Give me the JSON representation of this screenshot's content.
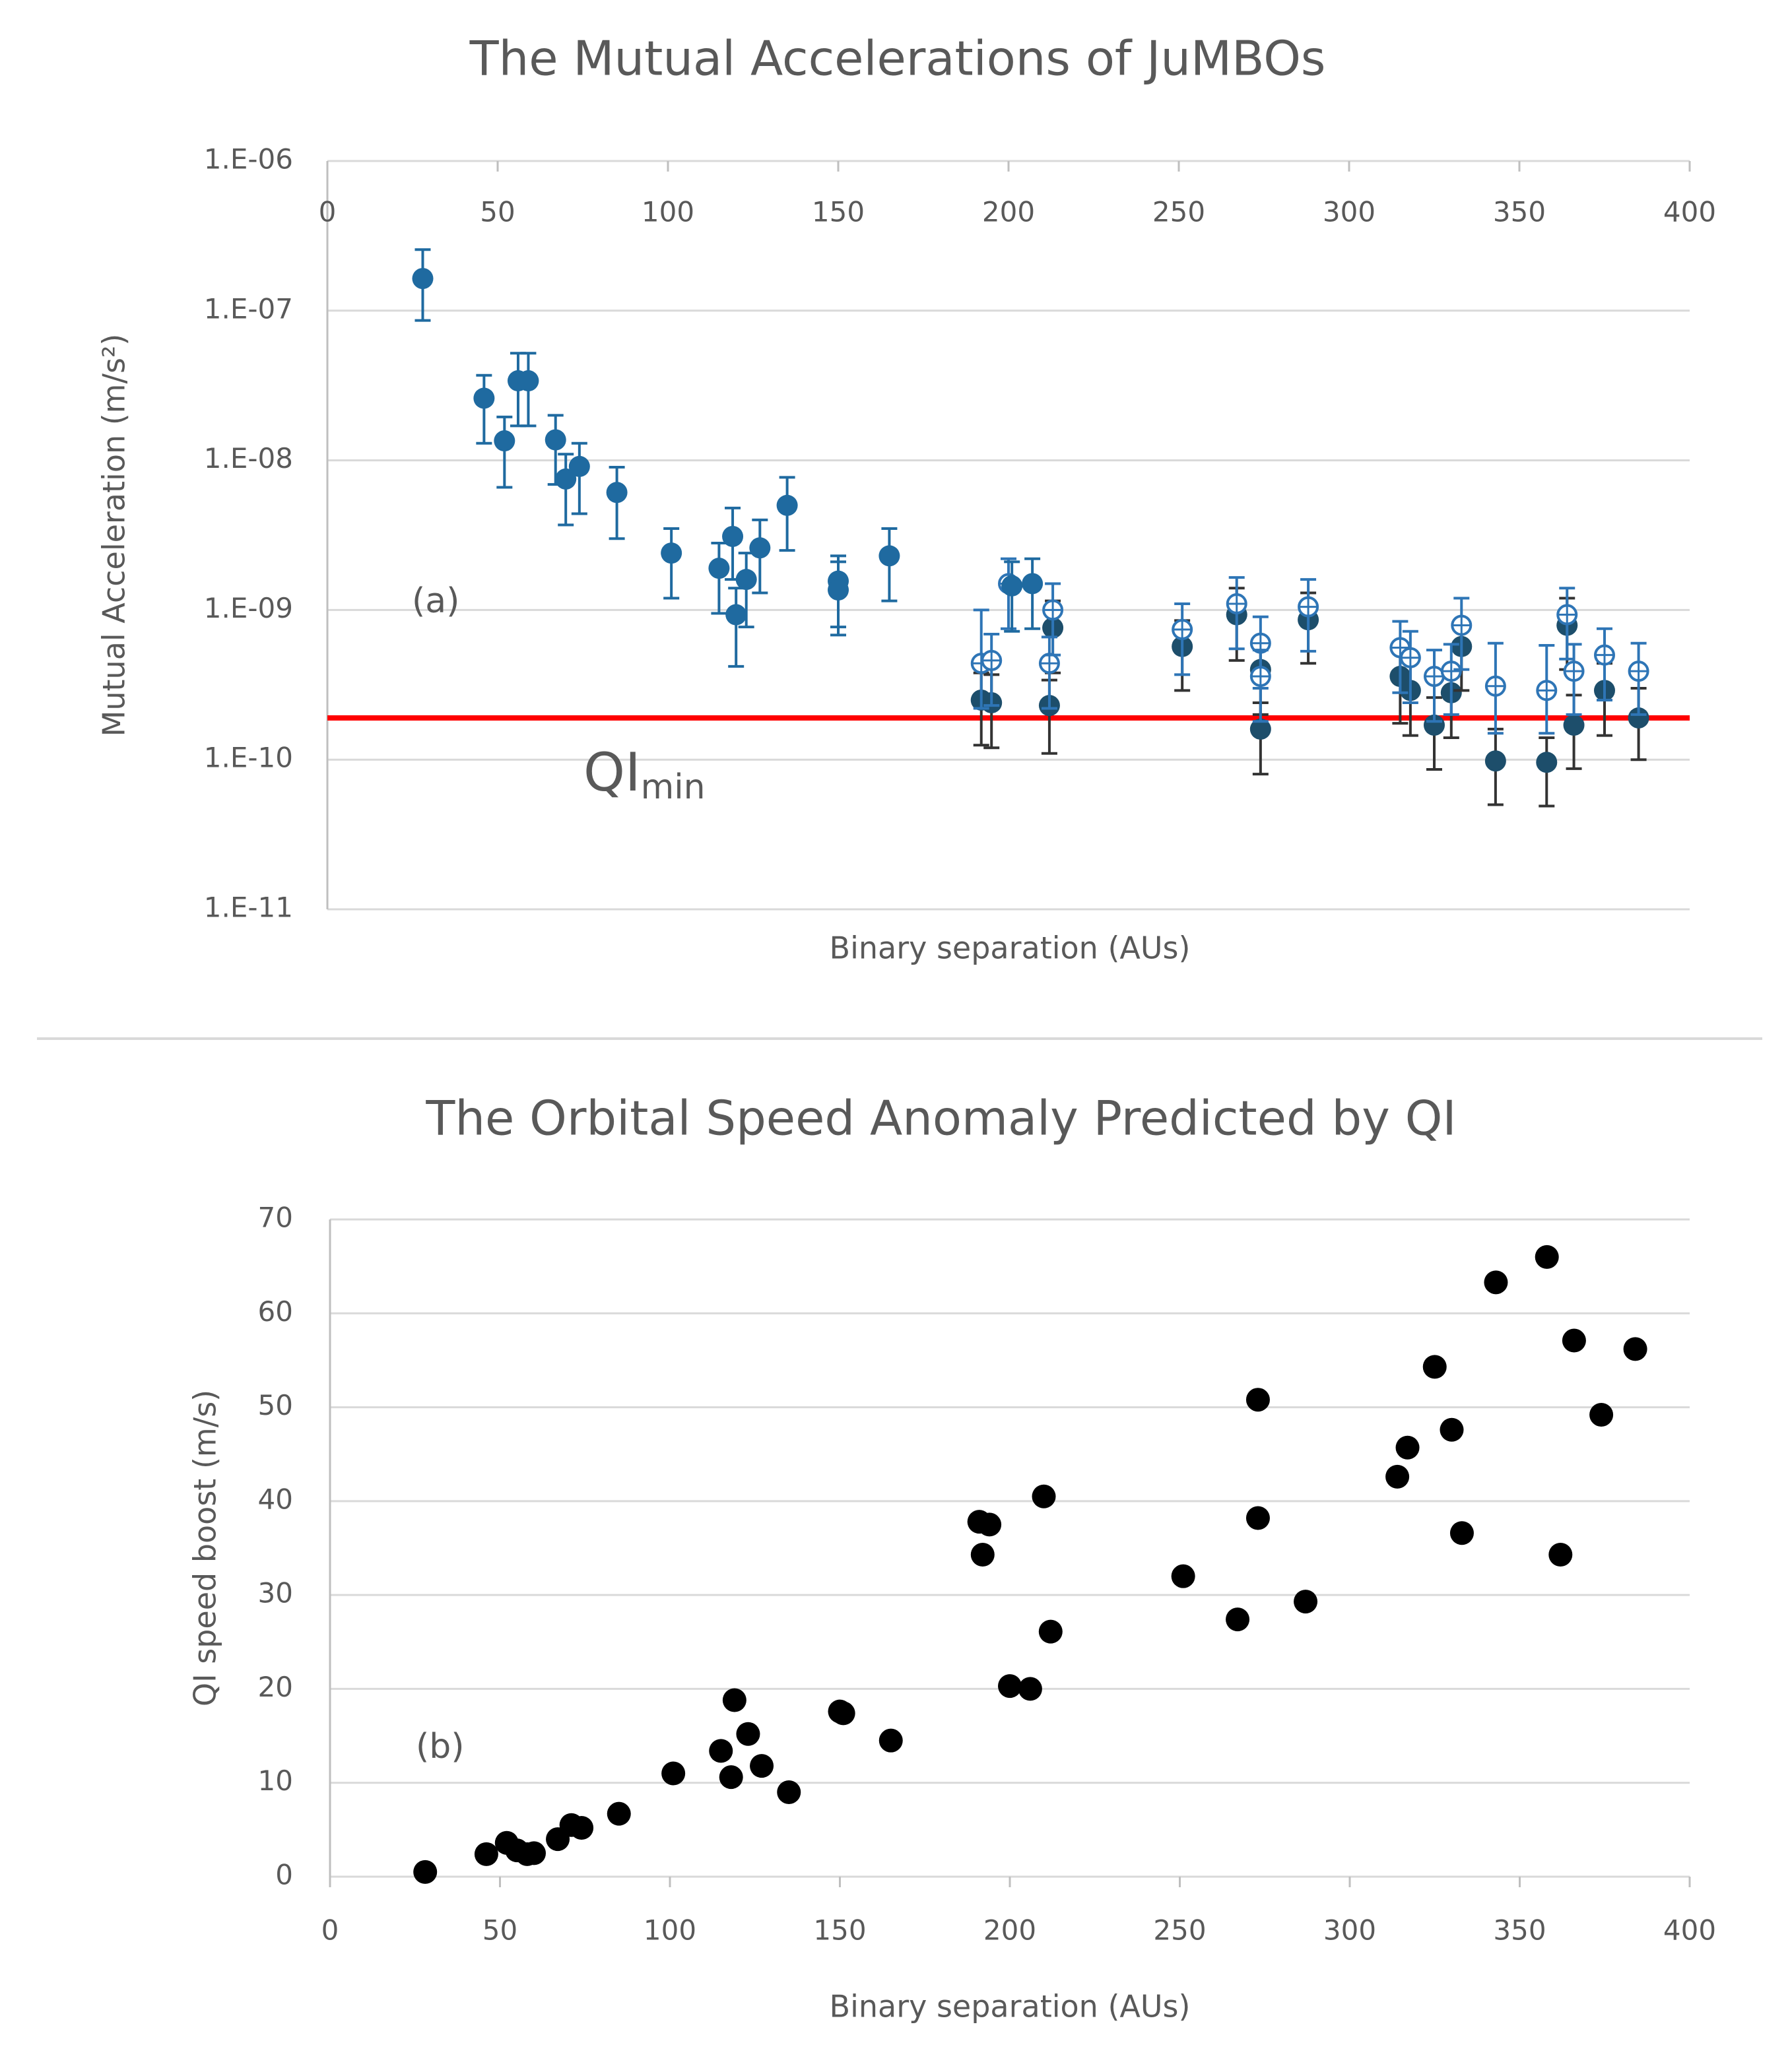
{
  "chart_data": [
    {
      "type": "scatter",
      "title": "The Mutual Accelerations of JuMBOs",
      "xlabel": "Binary separation (AUs)",
      "ylabel": "Mutual Acceleration (m/s²)",
      "xlim": [
        0,
        400
      ],
      "xticks": [
        0,
        50,
        100,
        150,
        200,
        250,
        300,
        350,
        400
      ],
      "xtick_position": "top",
      "ylim": [
        1e-11,
        1e-06
      ],
      "yscale": "log",
      "yticks": [
        {
          "value": 1e-11,
          "label": "1.E-11"
        },
        {
          "value": 1e-10,
          "label": "1.E-10"
        },
        {
          "value": 1e-09,
          "label": "1.E-09"
        },
        {
          "value": 1e-08,
          "label": "1.E-08"
        },
        {
          "value": 1e-07,
          "label": "1.E-07"
        },
        {
          "value": 1e-06,
          "label": "1.E-06"
        }
      ],
      "grid": true,
      "series": [
        {
          "color": "#1d4e6b",
          "error_color": "#333333",
          "marker": "filled",
          "x": [
            192,
            195,
            212,
            213,
            251,
            267,
            274,
            274,
            288,
            315,
            318,
            325,
            330,
            333,
            343,
            358,
            364,
            366,
            375,
            385
          ],
          "values": [
            2.5e-10,
            2.4e-10,
            2.3e-10,
            7.6e-10,
            5.7e-10,
            9.3e-10,
            1.6e-10,
            4e-10,
            8.6e-10,
            3.6e-10,
            2.9e-10,
            1.7e-10,
            2.8e-10,
            5.7e-10,
            9.8e-11,
            9.6e-11,
            7.9e-10,
            1.7e-10,
            2.9e-10,
            1.9e-10
          ],
          "lower": [
            1.25e-10,
            1.2e-10,
            1.1e-10,
            3.8e-10,
            2.9e-10,
            4.6e-10,
            8e-11,
            2e-10,
            4.4e-10,
            1.75e-10,
            1.45e-10,
            8.6e-11,
            1.4e-10,
            2.9e-10,
            5e-11,
            4.9e-11,
            4e-10,
            8.7e-11,
            1.45e-10,
            1e-10
          ],
          "upper": [
            3.8e-10,
            3.7e-10,
            3.4e-10,
            1.15e-09,
            8.5e-10,
            1.4e-09,
            2.4e-10,
            6e-10,
            1.3e-09,
            5.4e-10,
            4.4e-10,
            2.6e-10,
            4.2e-10,
            8.5e-10,
            1.6e-10,
            1.4e-10,
            1.2e-09,
            2.7e-10,
            4.4e-10,
            3e-10
          ]
        },
        {
          "color": "#2e75b6",
          "error_color": "#2e75b6",
          "marker": "open",
          "x": [
            192,
            195,
            200,
            212,
            213,
            251,
            267,
            274,
            274,
            288,
            315,
            318,
            325,
            330,
            333,
            343,
            358,
            364,
            366,
            375,
            385
          ],
          "values": [
            4.4e-10,
            4.6e-10,
            1.5e-09,
            4.4e-10,
            1e-09,
            7.4e-10,
            1.1e-09,
            6e-10,
            3.6e-10,
            1.05e-09,
            5.6e-10,
            4.8e-10,
            3.6e-10,
            3.9e-10,
            7.9e-10,
            3.1e-10,
            2.9e-10,
            9.3e-10,
            3.9e-10,
            5e-10,
            3.9e-10
          ],
          "lower": [
            2.2e-10,
            2.3e-10,
            7.5e-10,
            2.2e-10,
            5e-10,
            3.7e-10,
            5.5e-10,
            3e-10,
            1.8e-10,
            5.3e-10,
            2.8e-10,
            2.4e-10,
            1.8e-10,
            2e-10,
            4e-10,
            1.5e-10,
            1.5e-10,
            4.7e-10,
            2e-10,
            2.5e-10,
            2e-10
          ],
          "upper": [
            1e-09,
            6.9e-10,
            2.2e-09,
            6.6e-10,
            1.5e-09,
            1.1e-09,
            1.65e-09,
            9e-10,
            5.4e-10,
            1.6e-09,
            8.4e-10,
            7.2e-10,
            5.4e-10,
            5.9e-10,
            1.2e-09,
            6e-10,
            5.8e-10,
            1.4e-09,
            5.9e-10,
            7.5e-10,
            6e-10
          ]
        },
        {
          "color": "#1f6aa0",
          "error_color": "#1f6aa0",
          "marker": "filled",
          "x": [
            28,
            46,
            52,
            56,
            59,
            67,
            70,
            74,
            85,
            101,
            115,
            119,
            120,
            123,
            127,
            135,
            150,
            150,
            165,
            201,
            207
          ],
          "values": [
            1.64e-07,
            2.6e-08,
            1.35e-08,
            3.4e-08,
            3.4e-08,
            1.37e-08,
            7.5e-09,
            9.1e-09,
            6.1e-09,
            2.4e-09,
            1.9e-09,
            3.1e-09,
            9.3e-10,
            1.6e-09,
            2.6e-09,
            5e-09,
            1.56e-09,
            1.36e-09,
            2.3e-09,
            1.45e-09,
            1.5e-09
          ],
          "lower": [
            8.6e-08,
            1.3e-08,
            6.6e-09,
            1.7e-08,
            1.7e-08,
            6.9e-09,
            3.7e-09,
            4.4e-09,
            3e-09,
            1.2e-09,
            9.5e-10,
            1.6e-09,
            4.2e-10,
            7.7e-10,
            1.3e-09,
            2.5e-09,
            7.7e-10,
            6.8e-10,
            1.15e-09,
            7.2e-10,
            7.5e-10
          ],
          "upper": [
            2.56e-07,
            3.7e-08,
            1.95e-08,
            5.2e-08,
            5.2e-08,
            2e-08,
            1.1e-08,
            1.3e-08,
            9e-09,
            3.5e-09,
            2.8e-09,
            4.8e-09,
            1.4e-09,
            2.4e-09,
            4e-09,
            7.7e-09,
            2.3e-09,
            2.1e-09,
            3.5e-09,
            2.1e-09,
            2.2e-09
          ]
        }
      ],
      "hlines": [
        {
          "value": 1.9e-10,
          "color": "#ff0000"
        }
      ],
      "annotations": [
        {
          "text": "(a)"
        },
        {
          "text": "QI",
          "subscript": "min",
          "color": "#ff0000"
        }
      ]
    },
    {
      "type": "scatter",
      "title": "The Orbital Speed Anomaly Predicted by QI",
      "xlabel": "Binary separation (AUs)",
      "ylabel": "QI speed boost (m/s)",
      "xlim": [
        0,
        400
      ],
      "xticks": [
        0,
        50,
        100,
        150,
        200,
        250,
        300,
        350,
        400
      ],
      "xtick_position": "bottom",
      "ylim": [
        0,
        70
      ],
      "yticks": [
        0,
        10,
        20,
        30,
        40,
        50,
        60,
        70
      ],
      "grid": true,
      "series": [
        {
          "color": "#000000",
          "marker": "filled",
          "x": [
            28,
            46,
            52,
            55,
            58,
            60,
            67,
            71,
            74,
            85,
            101,
            115,
            118,
            119,
            123,
            127,
            135,
            150,
            151,
            165,
            191,
            192,
            194,
            200,
            206,
            210,
            212,
            251,
            267,
            273,
            273,
            287,
            314,
            317,
            325,
            330,
            333,
            343,
            358,
            362,
            366,
            374,
            384
          ],
          "values": [
            0.5,
            2.4,
            3.6,
            2.8,
            2.4,
            2.5,
            4,
            5.5,
            5.2,
            6.7,
            11,
            13.4,
            10.6,
            18.8,
            15.2,
            11.8,
            9,
            17.6,
            17.4,
            14.5,
            37.8,
            34.3,
            37.5,
            20.3,
            20,
            40.5,
            26.1,
            32,
            27.4,
            50.8,
            38.2,
            29.3,
            42.6,
            45.7,
            54.3,
            47.6,
            36.6,
            63.3,
            66,
            34.3,
            57.1,
            49.2,
            56.2
          ]
        }
      ],
      "annotations": [
        {
          "text": "(b)"
        }
      ]
    }
  ]
}
